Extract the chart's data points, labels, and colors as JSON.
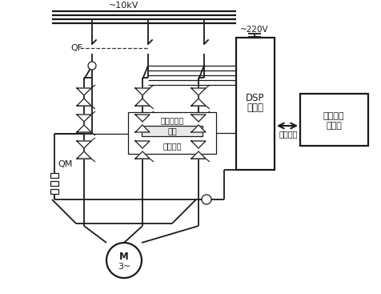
{
  "bg_color": "#ffffff",
  "line_color": "#1a1a1a",
  "labels": {
    "voltage_10kv": "~10kV",
    "voltage_220v": "~220V",
    "QF": "QF",
    "QM": "QM",
    "DSP_line1": "DSP",
    "DSP_line2": "控制板",
    "remote_line1": "远程操作",
    "remote_line2": "控制台",
    "control_info": "控制信息",
    "detect": "检测与保护",
    "fiber": "光纤",
    "trigger": "触发脉冲",
    "motor_line1": "M",
    "motor_line2": "3~"
  },
  "figsize": [
    4.76,
    3.67
  ],
  "dpi": 100
}
